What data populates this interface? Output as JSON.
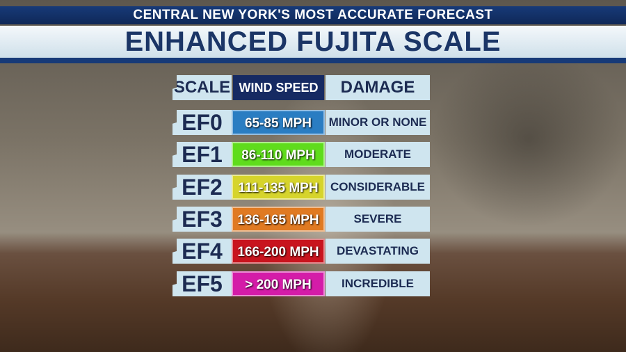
{
  "header": {
    "tagline": "CENTRAL NEW YORK'S MOST ACCURATE FORECAST",
    "title": "ENHANCED FUJITA SCALE"
  },
  "table": {
    "columns": [
      "SCALE",
      "WIND SPEED",
      "DAMAGE"
    ],
    "rows": [
      [
        "EF0",
        "65-85 MPH",
        "MINOR OR NONE"
      ],
      [
        "EF1",
        "86-110 MPH",
        "MODERATE"
      ],
      [
        "EF2",
        "111-135 MPH",
        "CONSIDERABLE"
      ],
      [
        "EF3",
        "136-165 MPH",
        "SEVERE"
      ],
      [
        "EF4",
        "166-200 MPH",
        "DEVASTATING"
      ],
      [
        "EF5",
        "> 200 MPH",
        "INCREDIBLE"
      ]
    ]
  }
}
